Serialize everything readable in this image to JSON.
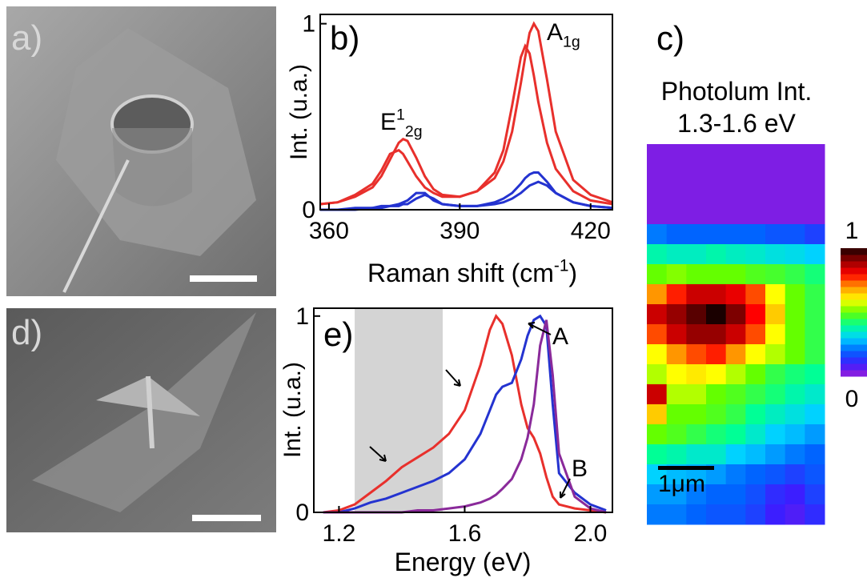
{
  "images": [
    {
      "label": "a)"
    },
    {
      "label": "d)"
    }
  ],
  "chart_data": [
    {
      "type": "line",
      "panel_label": "b)",
      "x_label": {
        "text": "Raman shift (cm",
        "sup": "-1",
        "tail": ")"
      },
      "y_label": "Int. (u.a.)",
      "annotations": [
        {
          "text": "E",
          "sup": "1",
          "sub": "2g"
        },
        {
          "text": "A",
          "sub": "1g"
        }
      ],
      "x": [
        358,
        362,
        366,
        370,
        372,
        374,
        376,
        377,
        378,
        380,
        382,
        384,
        386,
        390,
        394,
        398,
        400,
        402,
        404,
        405,
        406,
        407,
        408,
        410,
        412,
        416,
        420,
        425
      ],
      "series": [
        {
          "color": "#e8302c",
          "values": [
            0.03,
            0.04,
            0.07,
            0.12,
            0.18,
            0.27,
            0.36,
            0.38,
            0.37,
            0.28,
            0.18,
            0.11,
            0.08,
            0.07,
            0.1,
            0.17,
            0.26,
            0.42,
            0.68,
            0.82,
            0.95,
            1.0,
            0.96,
            0.7,
            0.42,
            0.16,
            0.08,
            0.04
          ]
        },
        {
          "color": "#e8302c",
          "values": [
            0.03,
            0.04,
            0.08,
            0.14,
            0.21,
            0.3,
            0.32,
            0.3,
            0.26,
            0.18,
            0.12,
            0.09,
            0.07,
            0.07,
            0.1,
            0.2,
            0.32,
            0.56,
            0.82,
            0.88,
            0.84,
            0.72,
            0.58,
            0.36,
            0.22,
            0.1,
            0.05,
            0.03
          ]
        },
        {
          "color": "#2433d0",
          "values": [
            0,
            0,
            0.01,
            0.01,
            0.02,
            0.02,
            0.03,
            0.04,
            0.05,
            0.09,
            0.09,
            0.05,
            0.03,
            0.02,
            0.02,
            0.04,
            0.06,
            0.09,
            0.14,
            0.17,
            0.19,
            0.2,
            0.2,
            0.15,
            0.09,
            0.04,
            0.02,
            0.01
          ]
        },
        {
          "color": "#2433d0",
          "values": [
            0,
            0,
            0,
            0.01,
            0.01,
            0.02,
            0.02,
            0.03,
            0.03,
            0.06,
            0.08,
            0.06,
            0.03,
            0.02,
            0.02,
            0.03,
            0.04,
            0.06,
            0.09,
            0.11,
            0.13,
            0.14,
            0.15,
            0.13,
            0.09,
            0.04,
            0.02,
            0.01
          ]
        }
      ],
      "xlim": [
        358,
        425
      ],
      "ylim": [
        0,
        1.05
      ],
      "xticks": [
        360,
        390,
        420
      ],
      "yticks": [
        0,
        1
      ]
    },
    {
      "type": "line",
      "panel_label": "e)",
      "x_label": {
        "text": "Energy (eV)"
      },
      "y_label": "Int. (u.a.)",
      "annotations": [
        {
          "text": "A"
        },
        {
          "text": "B"
        }
      ],
      "shade": [
        1.25,
        1.53
      ],
      "shade_color": "#d4d4d4",
      "x": [
        1.15,
        1.2,
        1.25,
        1.3,
        1.35,
        1.4,
        1.45,
        1.5,
        1.55,
        1.6,
        1.65,
        1.68,
        1.7,
        1.72,
        1.75,
        1.78,
        1.8,
        1.82,
        1.84,
        1.86,
        1.88,
        1.9,
        1.95,
        2.0,
        2.05
      ],
      "series": [
        {
          "color": "#e8302c",
          "values": [
            0,
            0.01,
            0.04,
            0.1,
            0.16,
            0.23,
            0.28,
            0.33,
            0.4,
            0.52,
            0.75,
            0.93,
            1.0,
            0.96,
            0.8,
            0.55,
            0.43,
            0.38,
            0.3,
            0.18,
            0.08,
            0.04,
            0.02,
            0.01,
            0
          ]
        },
        {
          "color": "#2433d0",
          "values": [
            0,
            0,
            0.02,
            0.05,
            0.07,
            0.1,
            0.13,
            0.16,
            0.2,
            0.27,
            0.4,
            0.52,
            0.6,
            0.64,
            0.66,
            0.78,
            0.9,
            0.98,
            1.0,
            0.95,
            0.55,
            0.2,
            0.1,
            0.04,
            0.01
          ]
        },
        {
          "color": "#8a2a9a",
          "values": [
            0,
            0,
            0,
            0,
            0,
            0,
            0.01,
            0.01,
            0.02,
            0.03,
            0.05,
            0.07,
            0.09,
            0.12,
            0.17,
            0.27,
            0.38,
            0.55,
            0.85,
            0.98,
            0.7,
            0.3,
            0.08,
            0.02,
            0
          ]
        }
      ],
      "xlim": [
        1.12,
        2.07
      ],
      "ylim": [
        0,
        1.04
      ],
      "xticks": [
        {
          "value": 1.2,
          "label": "1.2"
        },
        {
          "value": 1.6,
          "label": "1.6"
        },
        {
          "value": 2.0,
          "label": "2.0"
        }
      ],
      "yticks": [
        0,
        1
      ]
    },
    {
      "type": "heatmap",
      "panel_label": "c)",
      "title": "Photolum Int.",
      "subtitle": "1.3-1.6 eV",
      "scale_bar": "1μm",
      "colormap": [
        "#9a1ed8",
        "#3c1eff",
        "#0064ff",
        "#00d2ff",
        "#00ff96",
        "#64ff00",
        "#ffff00",
        "#ff9600",
        "#ff0000",
        "#960000",
        "#1a0000"
      ],
      "zlim": [
        0,
        1
      ],
      "zticks": [
        0,
        1
      ],
      "z": [
        [
          0.03,
          0.03,
          0.03,
          0.03,
          0.03,
          0.03,
          0.03,
          0.03,
          0.03
        ],
        [
          0.03,
          0.03,
          0.03,
          0.03,
          0.03,
          0.03,
          0.03,
          0.03,
          0.03
        ],
        [
          0.03,
          0.03,
          0.03,
          0.03,
          0.03,
          0.03,
          0.03,
          0.03,
          0.03
        ],
        [
          0.03,
          0.03,
          0.03,
          0.03,
          0.03,
          0.03,
          0.03,
          0.03,
          0.03
        ],
        [
          0.22,
          0.2,
          0.2,
          0.2,
          0.2,
          0.2,
          0.18,
          0.18,
          0.15
        ],
        [
          0.38,
          0.36,
          0.36,
          0.38,
          0.36,
          0.35,
          0.33,
          0.32,
          0.3
        ],
        [
          0.5,
          0.52,
          0.5,
          0.5,
          0.5,
          0.48,
          0.47,
          0.45,
          0.42
        ],
        [
          0.7,
          0.78,
          0.85,
          0.85,
          0.82,
          0.75,
          0.6,
          0.5,
          0.45
        ],
        [
          0.85,
          0.9,
          0.95,
          1.0,
          0.92,
          0.8,
          0.65,
          0.5,
          0.45
        ],
        [
          0.75,
          0.85,
          0.9,
          0.9,
          0.85,
          0.75,
          0.6,
          0.5,
          0.45
        ],
        [
          0.6,
          0.7,
          0.75,
          0.78,
          0.7,
          0.6,
          0.55,
          0.5,
          0.45
        ],
        [
          0.55,
          0.6,
          0.62,
          0.6,
          0.55,
          0.5,
          0.45,
          0.42,
          0.4
        ],
        [
          0.85,
          0.55,
          0.55,
          0.5,
          0.48,
          0.45,
          0.42,
          0.38,
          0.35
        ],
        [
          0.65,
          0.5,
          0.5,
          0.48,
          0.45,
          0.4,
          0.36,
          0.33,
          0.3
        ],
        [
          0.5,
          0.48,
          0.45,
          0.42,
          0.4,
          0.35,
          0.3,
          0.28,
          0.25
        ],
        [
          0.4,
          0.38,
          0.35,
          0.35,
          0.3,
          0.28,
          0.25,
          0.22,
          0.2
        ],
        [
          0.3,
          0.28,
          0.27,
          0.25,
          0.22,
          0.2,
          0.18,
          0.15,
          0.18
        ],
        [
          0.25,
          0.25,
          0.22,
          0.2,
          0.2,
          0.17,
          0.12,
          0.1,
          0.15
        ],
        [
          0.22,
          0.22,
          0.2,
          0.18,
          0.18,
          0.15,
          0.1,
          0.08,
          0.12
        ]
      ]
    }
  ]
}
